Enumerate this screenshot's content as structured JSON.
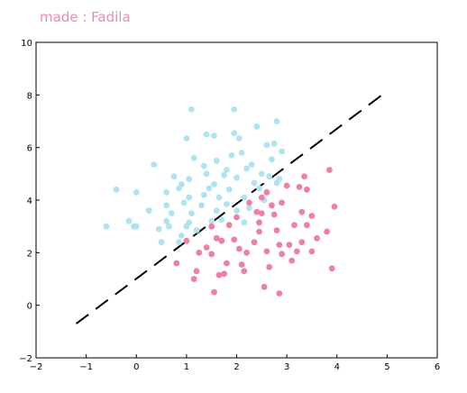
{
  "watermark": "made : Fadila",
  "chart_data": {
    "type": "scatter",
    "xlim": [
      -2,
      6
    ],
    "ylim": [
      -2,
      10
    ],
    "xticks": [
      "−2",
      "−1",
      "0",
      "1",
      "2",
      "3",
      "4",
      "5",
      "6"
    ],
    "yticks": [
      "−2",
      "0",
      "2",
      "4",
      "6",
      "8",
      "10"
    ],
    "grid": false,
    "colors": {
      "class_blue": "#aee3ef",
      "class_pink": "#ee7fa5",
      "boundary": "#000000"
    },
    "decision_boundary": {
      "style": "dashed",
      "x": [
        -1.2,
        4.9
      ],
      "y": [
        -0.7,
        8.0
      ]
    },
    "series": [
      {
        "color": "#aee3ef",
        "points": [
          [
            -0.6,
            3.0
          ],
          [
            -0.4,
            4.4
          ],
          [
            -0.15,
            3.2
          ],
          [
            -0.05,
            3.0
          ],
          [
            0.0,
            4.3
          ],
          [
            0.0,
            3.0
          ],
          [
            0.25,
            3.6
          ],
          [
            0.35,
            5.35
          ],
          [
            0.45,
            2.9
          ],
          [
            0.5,
            2.4
          ],
          [
            0.6,
            3.2
          ],
          [
            0.6,
            4.3
          ],
          [
            0.6,
            3.8
          ],
          [
            0.65,
            3.0
          ],
          [
            0.7,
            3.5
          ],
          [
            0.75,
            4.9
          ],
          [
            0.85,
            4.45
          ],
          [
            0.85,
            2.4
          ],
          [
            0.9,
            2.65
          ],
          [
            0.9,
            4.6
          ],
          [
            0.95,
            3.9
          ],
          [
            1.0,
            6.35
          ],
          [
            1.0,
            3.0
          ],
          [
            1.05,
            4.8
          ],
          [
            1.05,
            4.1
          ],
          [
            1.05,
            3.15
          ],
          [
            1.1,
            7.45
          ],
          [
            1.1,
            3.5
          ],
          [
            1.15,
            5.6
          ],
          [
            1.2,
            2.85
          ],
          [
            1.3,
            3.8
          ],
          [
            1.35,
            4.2
          ],
          [
            1.35,
            5.3
          ],
          [
            1.4,
            5.0
          ],
          [
            1.4,
            6.5
          ],
          [
            1.45,
            4.45
          ],
          [
            1.5,
            3.2
          ],
          [
            1.55,
            6.45
          ],
          [
            1.55,
            4.6
          ],
          [
            1.6,
            3.6
          ],
          [
            1.6,
            5.5
          ],
          [
            1.65,
            4.1
          ],
          [
            1.7,
            3.25
          ],
          [
            1.75,
            4.95
          ],
          [
            1.8,
            3.85
          ],
          [
            1.8,
            5.15
          ],
          [
            1.85,
            4.4
          ],
          [
            1.9,
            5.7
          ],
          [
            1.95,
            6.55
          ],
          [
            1.95,
            7.45
          ],
          [
            2.0,
            3.6
          ],
          [
            2.0,
            4.85
          ],
          [
            2.05,
            6.35
          ],
          [
            2.1,
            5.8
          ],
          [
            2.15,
            4.1
          ],
          [
            2.15,
            3.15
          ],
          [
            2.2,
            5.2
          ],
          [
            2.25,
            3.7
          ],
          [
            2.3,
            5.35
          ],
          [
            2.35,
            4.65
          ],
          [
            2.4,
            6.8
          ],
          [
            2.45,
            4.45
          ],
          [
            2.5,
            5.0
          ],
          [
            2.55,
            4.0
          ],
          [
            2.6,
            6.1
          ],
          [
            2.65,
            4.9
          ],
          [
            2.7,
            5.55
          ],
          [
            2.75,
            6.15
          ],
          [
            2.8,
            4.65
          ],
          [
            2.8,
            7.0
          ],
          [
            2.85,
            4.8
          ],
          [
            2.9,
            5.85
          ]
        ]
      },
      {
        "color": "#ee7fa5",
        "points": [
          [
            0.8,
            1.6
          ],
          [
            1.0,
            2.45
          ],
          [
            1.15,
            1.0
          ],
          [
            1.2,
            1.3
          ],
          [
            1.25,
            2.0
          ],
          [
            1.4,
            2.2
          ],
          [
            1.5,
            3.0
          ],
          [
            1.5,
            1.95
          ],
          [
            1.55,
            0.5
          ],
          [
            1.6,
            2.55
          ],
          [
            1.65,
            1.15
          ],
          [
            1.7,
            2.45
          ],
          [
            1.75,
            1.2
          ],
          [
            1.8,
            1.6
          ],
          [
            1.85,
            3.05
          ],
          [
            1.95,
            2.5
          ],
          [
            2.0,
            3.35
          ],
          [
            2.05,
            2.15
          ],
          [
            2.1,
            1.55
          ],
          [
            2.15,
            1.3
          ],
          [
            2.2,
            2.0
          ],
          [
            2.25,
            3.9
          ],
          [
            2.35,
            2.4
          ],
          [
            2.4,
            3.55
          ],
          [
            2.45,
            3.15
          ],
          [
            2.45,
            2.8
          ],
          [
            2.5,
            4.1
          ],
          [
            2.5,
            3.5
          ],
          [
            2.55,
            0.7
          ],
          [
            2.6,
            2.05
          ],
          [
            2.6,
            4.3
          ],
          [
            2.65,
            1.45
          ],
          [
            2.7,
            3.8
          ],
          [
            2.75,
            3.45
          ],
          [
            2.8,
            2.85
          ],
          [
            2.85,
            0.45
          ],
          [
            2.85,
            2.3
          ],
          [
            2.9,
            3.9
          ],
          [
            2.9,
            1.95
          ],
          [
            3.0,
            4.55
          ],
          [
            3.05,
            2.3
          ],
          [
            3.1,
            1.7
          ],
          [
            3.15,
            3.05
          ],
          [
            3.2,
            2.05
          ],
          [
            3.25,
            4.5
          ],
          [
            3.3,
            3.55
          ],
          [
            3.3,
            2.4
          ],
          [
            3.35,
            4.9
          ],
          [
            3.4,
            4.4
          ],
          [
            3.4,
            3.05
          ],
          [
            3.5,
            3.4
          ],
          [
            3.5,
            2.05
          ],
          [
            3.6,
            2.55
          ],
          [
            3.8,
            2.8
          ],
          [
            3.85,
            5.15
          ],
          [
            3.9,
            1.4
          ],
          [
            3.95,
            3.75
          ]
        ]
      }
    ]
  }
}
